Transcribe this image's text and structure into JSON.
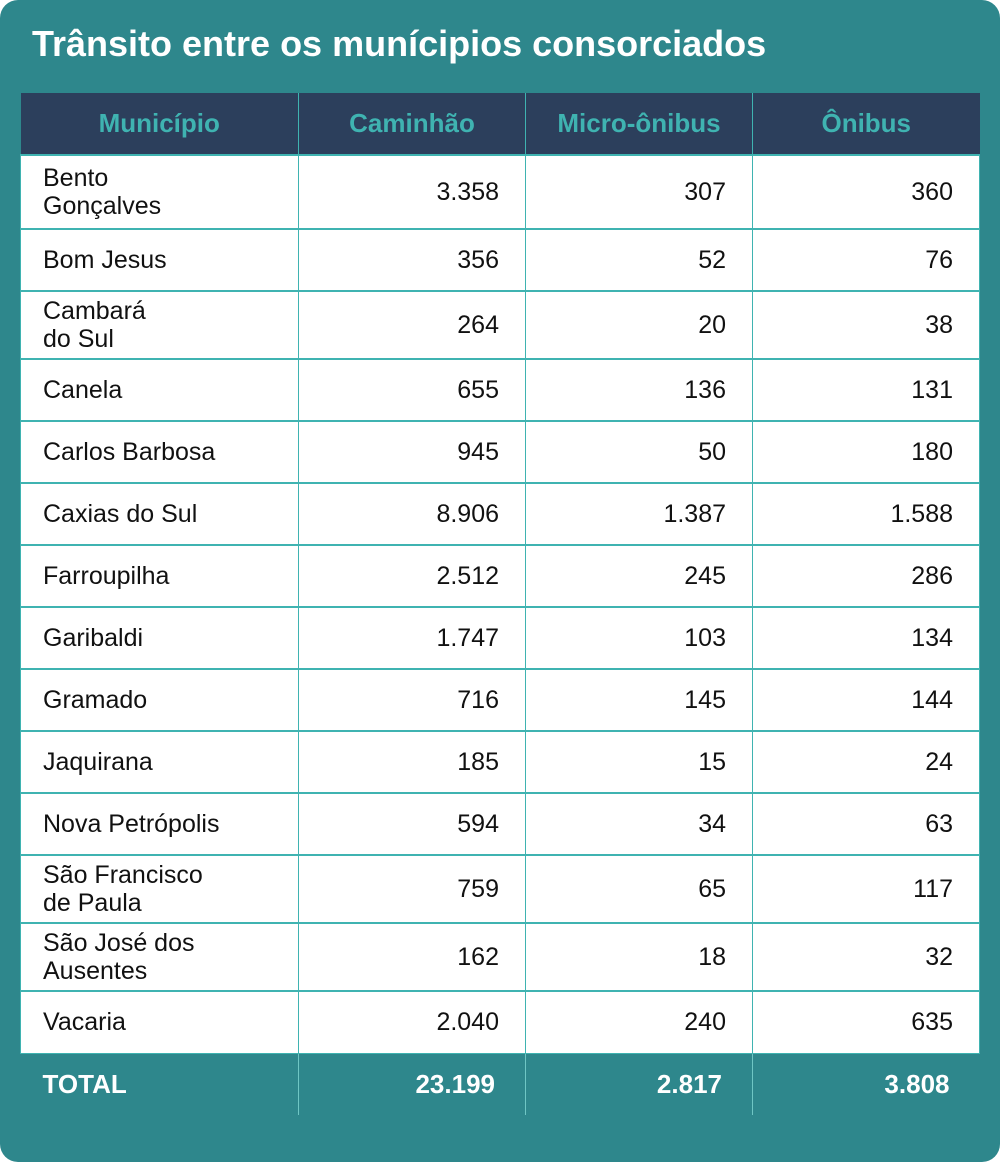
{
  "title": "Trânsito entre os munícipios consorciados",
  "chart_data": {
    "type": "table",
    "title": "Trânsito entre os munícipios consorciados",
    "columns": [
      "Município",
      "Caminhão",
      "Micro-ônibus",
      "Ônibus"
    ],
    "rows": [
      {
        "municipio": "Bento\nGonçalves",
        "caminhao": "3.358",
        "micro": "307",
        "onibus": "360"
      },
      {
        "municipio": "Bom Jesus",
        "caminhao": "356",
        "micro": "52",
        "onibus": "76"
      },
      {
        "municipio": "Cambará\ndo Sul",
        "caminhao": "264",
        "micro": "20",
        "onibus": "38"
      },
      {
        "municipio": "Canela",
        "caminhao": "655",
        "micro": "136",
        "onibus": "131"
      },
      {
        "municipio": "Carlos Barbosa",
        "caminhao": "945",
        "micro": "50",
        "onibus": "180"
      },
      {
        "municipio": "Caxias do Sul",
        "caminhao": "8.906",
        "micro": "1.387",
        "onibus": "1.588"
      },
      {
        "municipio": "Farroupilha",
        "caminhao": "2.512",
        "micro": "245",
        "onibus": "286"
      },
      {
        "municipio": "Garibaldi",
        "caminhao": "1.747",
        "micro": "103",
        "onibus": "134"
      },
      {
        "municipio": "Gramado",
        "caminhao": "716",
        "micro": "145",
        "onibus": "144"
      },
      {
        "municipio": "Jaquirana",
        "caminhao": "185",
        "micro": "15",
        "onibus": "24"
      },
      {
        "municipio": "Nova Petrópolis",
        "caminhao": "594",
        "micro": "34",
        "onibus": "63"
      },
      {
        "municipio": "São Francisco\nde Paula",
        "caminhao": "759",
        "micro": "65",
        "onibus": "117"
      },
      {
        "municipio": "São José dos\nAusentes",
        "caminhao": "162",
        "micro": "18",
        "onibus": "32"
      },
      {
        "municipio": "Vacaria",
        "caminhao": "2.040",
        "micro": "240",
        "onibus": "635"
      }
    ],
    "total": {
      "label": "TOTAL",
      "caminhao": "23.199",
      "micro": "2.817",
      "onibus": "3.808"
    }
  },
  "colors": {
    "background": "#2e878c",
    "header_bg": "#2c3f5c",
    "header_text": "#3fb3b1",
    "grid": "#3fb3b1",
    "cell_bg": "#ffffff",
    "total_text": "#ffffff"
  }
}
